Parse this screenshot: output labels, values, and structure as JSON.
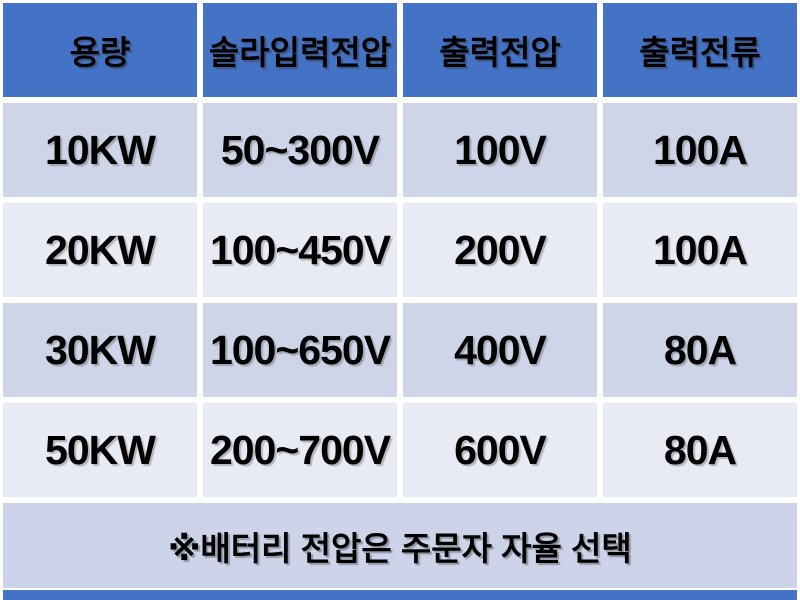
{
  "table": {
    "headers": [
      "용량",
      "솔라입력전압",
      "출력전압",
      "출력전류"
    ],
    "rows": [
      [
        "10KW",
        "50~300V",
        "100V",
        "100A"
      ],
      [
        "20KW",
        "100~450V",
        "200V",
        "100A"
      ],
      [
        "30KW",
        "100~650V",
        "400V",
        "80A"
      ],
      [
        "50KW",
        "200~700V",
        "600V",
        "80A"
      ]
    ],
    "footnote": "※배터리 전압은 주문자 자율 선택"
  },
  "chart_data": {
    "type": "table",
    "title": "",
    "columns": [
      "용량",
      "솔라입력전압",
      "출력전압",
      "출력전류"
    ],
    "rows": [
      [
        "10KW",
        "50~300V",
        "100V",
        "100A"
      ],
      [
        "20KW",
        "100~450V",
        "200V",
        "100A"
      ],
      [
        "30KW",
        "100~650V",
        "400V",
        "80A"
      ],
      [
        "50KW",
        "200~700V",
        "600V",
        "80A"
      ]
    ],
    "footnote": "※배터리 전압은 주문자 자율 선택"
  },
  "colors": {
    "header_bg": "#4472C4",
    "row_odd_bg": "#CFD5E8",
    "row_even_bg": "#E9EBF4",
    "footer_bg": "#CDD3E8",
    "accent_bar": "#4472C4",
    "gutter": "#FFFFFF",
    "text": "#000000"
  }
}
